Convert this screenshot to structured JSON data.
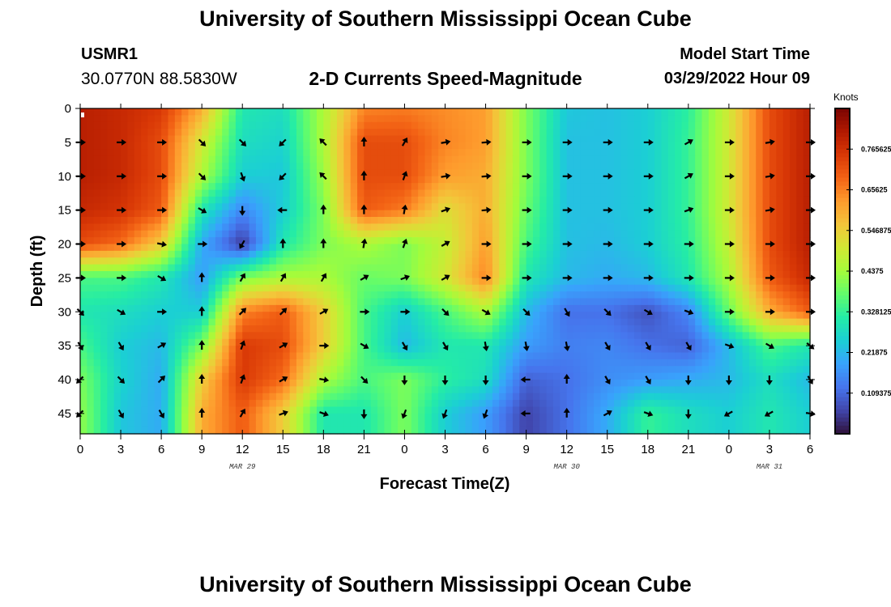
{
  "header": {
    "title": "University of Southern Mississippi Ocean Cube",
    "station_id": "USMR1",
    "coordinates": "30.0770N  88.5830W",
    "start_label": "Model Start Time",
    "start_value": "03/29/2022 Hour 09"
  },
  "footer": {
    "title": "University of Southern Mississippi Ocean Cube"
  },
  "colors": {
    "background": "#ffffff",
    "arrows": "#000000",
    "colormap": [
      "#30123b",
      "#4145ab",
      "#4675ed",
      "#39a2fc",
      "#1bcfd4",
      "#24eca6",
      "#61fc6c",
      "#a4fc3b",
      "#d1e834",
      "#f3c63a",
      "#fe9b2d",
      "#f36315",
      "#d93806",
      "#b11901",
      "#7a0402"
    ]
  },
  "chart_data": {
    "type": "heatmap",
    "title": "2-D Currents Speed-Magnitude",
    "xlabel": "Forecast Time(Z)",
    "ylabel": "Depth (ft)",
    "x_tick_labels": [
      "0",
      "3",
      "6",
      "9",
      "12",
      "15",
      "18",
      "21",
      "0",
      "3",
      "6",
      "9",
      "12",
      "15",
      "18",
      "21",
      "0",
      "3",
      "6"
    ],
    "x_range_hours": [
      0,
      54
    ],
    "date_labels": [
      {
        "label": "MAR 29",
        "hour": 12
      },
      {
        "label": "MAR 30",
        "hour": 36
      },
      {
        "label": "MAR 31",
        "hour": 51
      }
    ],
    "y_ticks": [
      0,
      5,
      10,
      15,
      20,
      25,
      30,
      35,
      40,
      45
    ],
    "y_range": [
      0,
      48
    ],
    "y_inverted": true,
    "colorbar": {
      "units": "Knots",
      "min": 0,
      "max": 0.875,
      "tick_labels": [
        "0.109375",
        "0.21875",
        "0.328125",
        "0.4375",
        "0.546875",
        "0.65625",
        "0.765625"
      ],
      "tick_values": [
        0.109375,
        0.21875,
        0.328125,
        0.4375,
        0.546875,
        0.65625,
        0.765625
      ]
    },
    "speed_field": {
      "x_hours": [
        0,
        3,
        6,
        9,
        12,
        15,
        18,
        21,
        24,
        27,
        30,
        33,
        36,
        39,
        42,
        45,
        48,
        51,
        54
      ],
      "depths": [
        0,
        5,
        10,
        15,
        20,
        25,
        30,
        35,
        40,
        45
      ],
      "values": [
        [
          0.8,
          0.78,
          0.75,
          0.6,
          0.3,
          0.28,
          0.45,
          0.65,
          0.66,
          0.64,
          0.62,
          0.4,
          0.24,
          0.23,
          0.25,
          0.32,
          0.5,
          0.72,
          0.8
        ],
        [
          0.8,
          0.78,
          0.72,
          0.5,
          0.28,
          0.26,
          0.45,
          0.72,
          0.72,
          0.65,
          0.62,
          0.4,
          0.23,
          0.23,
          0.25,
          0.33,
          0.5,
          0.72,
          0.8
        ],
        [
          0.8,
          0.78,
          0.72,
          0.45,
          0.25,
          0.24,
          0.43,
          0.72,
          0.72,
          0.62,
          0.6,
          0.4,
          0.23,
          0.23,
          0.25,
          0.33,
          0.5,
          0.72,
          0.8
        ],
        [
          0.78,
          0.76,
          0.7,
          0.3,
          0.15,
          0.25,
          0.4,
          0.7,
          0.66,
          0.52,
          0.6,
          0.38,
          0.23,
          0.23,
          0.25,
          0.33,
          0.5,
          0.72,
          0.8
        ],
        [
          0.72,
          0.68,
          0.55,
          0.2,
          0.05,
          0.3,
          0.4,
          0.45,
          0.4,
          0.48,
          0.62,
          0.35,
          0.23,
          0.22,
          0.25,
          0.32,
          0.48,
          0.72,
          0.8
        ],
        [
          0.35,
          0.35,
          0.3,
          0.18,
          0.4,
          0.45,
          0.45,
          0.38,
          0.4,
          0.5,
          0.65,
          0.3,
          0.22,
          0.2,
          0.22,
          0.3,
          0.45,
          0.7,
          0.78
        ],
        [
          0.3,
          0.28,
          0.25,
          0.25,
          0.65,
          0.7,
          0.55,
          0.35,
          0.25,
          0.35,
          0.45,
          0.22,
          0.12,
          0.12,
          0.08,
          0.15,
          0.38,
          0.6,
          0.7
        ],
        [
          0.35,
          0.25,
          0.22,
          0.4,
          0.75,
          0.72,
          0.55,
          0.35,
          0.22,
          0.3,
          0.3,
          0.18,
          0.14,
          0.15,
          0.12,
          0.1,
          0.22,
          0.35,
          0.3
        ],
        [
          0.4,
          0.26,
          0.2,
          0.55,
          0.75,
          0.68,
          0.45,
          0.35,
          0.4,
          0.32,
          0.28,
          0.1,
          0.12,
          0.16,
          0.18,
          0.2,
          0.22,
          0.28,
          0.22
        ],
        [
          0.42,
          0.24,
          0.2,
          0.6,
          0.7,
          0.55,
          0.3,
          0.3,
          0.4,
          0.25,
          0.18,
          0.06,
          0.12,
          0.2,
          0.33,
          0.28,
          0.25,
          0.3,
          0.25
        ]
      ]
    },
    "vectors": {
      "x_hours": [
        0,
        3,
        6,
        9,
        12,
        15,
        18,
        21,
        24,
        27,
        30,
        33,
        36,
        39,
        42,
        45,
        48,
        51,
        54
      ],
      "depths": [
        5,
        10,
        15,
        20,
        25,
        30,
        35,
        40,
        45
      ],
      "direction_deg": [
        [
          90,
          90,
          90,
          135,
          135,
          225,
          315,
          0,
          30,
          80,
          85,
          90,
          90,
          90,
          90,
          60,
          90,
          80,
          90
        ],
        [
          90,
          90,
          90,
          135,
          160,
          225,
          315,
          0,
          20,
          80,
          85,
          90,
          90,
          90,
          90,
          60,
          90,
          80,
          90
        ],
        [
          90,
          90,
          90,
          120,
          180,
          270,
          0,
          0,
          10,
          70,
          85,
          90,
          90,
          90,
          90,
          70,
          90,
          80,
          90
        ],
        [
          90,
          90,
          100,
          90,
          210,
          0,
          0,
          10,
          20,
          60,
          90,
          90,
          90,
          90,
          90,
          90,
          90,
          90,
          90
        ],
        [
          90,
          90,
          120,
          0,
          30,
          30,
          30,
          60,
          70,
          60,
          90,
          90,
          90,
          90,
          90,
          90,
          90,
          90,
          90
        ],
        [
          135,
          120,
          90,
          0,
          45,
          45,
          60,
          90,
          90,
          135,
          120,
          135,
          150,
          135,
          120,
          110,
          90,
          90,
          90
        ],
        [
          150,
          150,
          60,
          0,
          20,
          60,
          90,
          120,
          150,
          150,
          170,
          170,
          170,
          150,
          150,
          150,
          110,
          120,
          130
        ],
        [
          225,
          135,
          45,
          0,
          20,
          60,
          100,
          135,
          180,
          180,
          180,
          270,
          0,
          150,
          150,
          180,
          180,
          180,
          150
        ],
        [
          225,
          150,
          150,
          0,
          30,
          70,
          110,
          180,
          200,
          200,
          200,
          270,
          0,
          60,
          110,
          180,
          240,
          240,
          100
        ]
      ]
    }
  }
}
